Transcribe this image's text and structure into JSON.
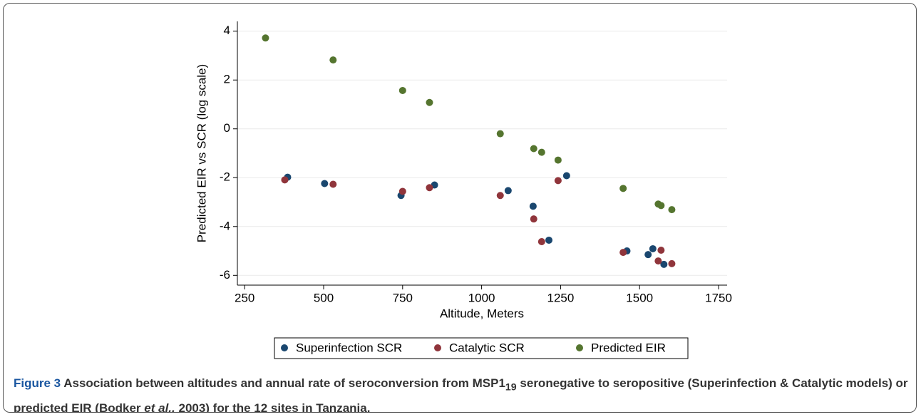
{
  "chart_data": {
    "type": "scatter",
    "xlabel": "Altitude, Meters",
    "ylabel": "Predicted EIR vs SCR (log scale)",
    "xlim": [
      227,
      1777
    ],
    "ylim": [
      -6.4,
      4.4
    ],
    "xticks": [
      250,
      500,
      750,
      1000,
      1250,
      1500,
      1750
    ],
    "yticks": [
      4,
      2,
      0,
      -2,
      -4,
      -6
    ],
    "grid": true,
    "legend": "bottom",
    "series": [
      {
        "name": "Superinfection SCR",
        "color": "#1a476f",
        "x": [
          386,
          503,
          745,
          851,
          1084,
          1163,
          1213,
          1269,
          1460,
          1527,
          1542,
          1577
        ],
        "values": [
          -1.98,
          -2.24,
          -2.73,
          -2.3,
          -2.53,
          -3.17,
          -4.56,
          -1.92,
          -5.0,
          -5.15,
          -4.91,
          -5.55
        ]
      },
      {
        "name": "Catalytic SCR",
        "color": "#90353b",
        "x": [
          377,
          530,
          750,
          835,
          1059,
          1165,
          1190,
          1242,
          1448,
          1559,
          1568,
          1602
        ],
        "values": [
          -2.09,
          -2.27,
          -2.56,
          -2.41,
          -2.73,
          -3.69,
          -4.62,
          -2.12,
          -5.06,
          -5.41,
          -4.97,
          -5.52
        ]
      },
      {
        "name": "Predicted EIR",
        "color": "#55752f",
        "x": [
          316,
          530,
          750,
          835,
          1059,
          1165,
          1190,
          1242,
          1448,
          1559,
          1568,
          1602
        ],
        "values": [
          3.72,
          2.82,
          1.57,
          1.08,
          -0.2,
          -0.81,
          -0.96,
          -1.28,
          -2.44,
          -3.08,
          -3.14,
          -3.31
        ]
      }
    ]
  },
  "caption": {
    "label": "Figure 3",
    "parts": [
      "Association between altitudes and annual rate of seroconversion from MSP1",
      "19",
      "seronegative to seropositive (Superinfection & Catalytic models) or predicted EIR (Bodker",
      "et al.,",
      "2003) for the 12 sites in Tanzania."
    ]
  }
}
